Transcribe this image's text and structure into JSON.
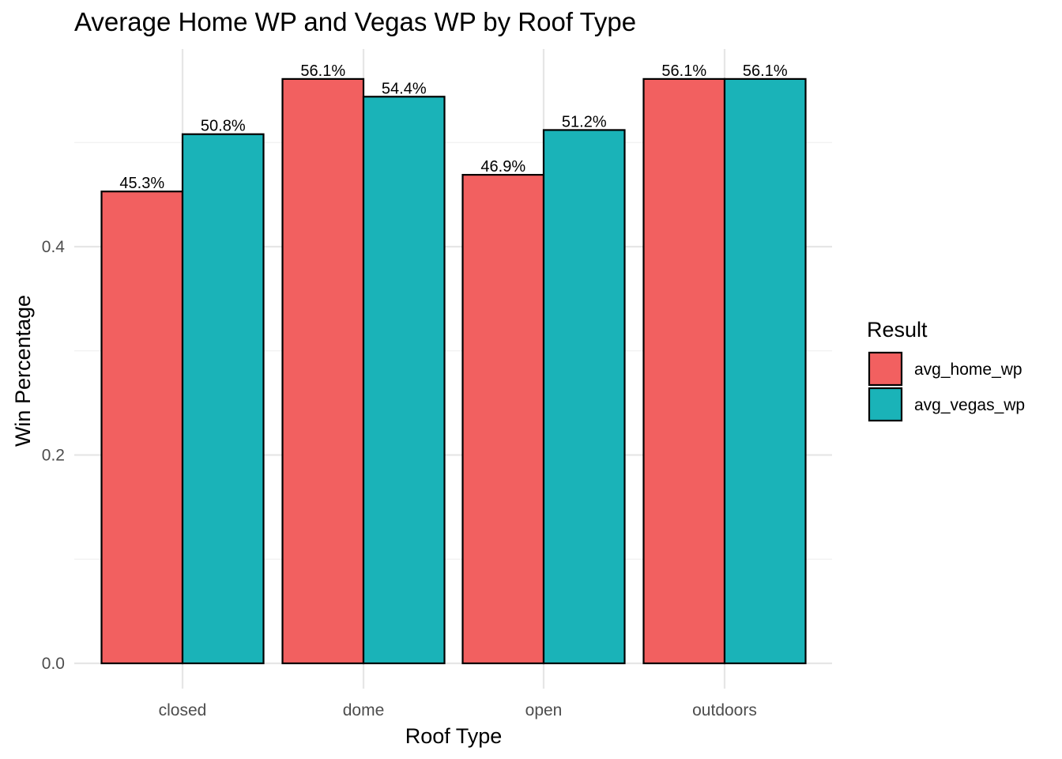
{
  "chart_data": {
    "type": "bar",
    "title": "Average Home WP and Vegas WP by Roof Type",
    "xlabel": "Roof Type",
    "ylabel": "Win Percentage",
    "categories": [
      "closed",
      "dome",
      "open",
      "outdoors"
    ],
    "series": [
      {
        "name": "avg_home_wp",
        "color": "#F26060",
        "values": [
          0.453,
          0.561,
          0.469,
          0.561
        ],
        "labels": [
          "45.3%",
          "56.1%",
          "46.9%",
          "56.1%"
        ]
      },
      {
        "name": "avg_vegas_wp",
        "color": "#1AB3B8",
        "values": [
          0.508,
          0.544,
          0.512,
          0.561
        ],
        "labels": [
          "50.8%",
          "54.4%",
          "51.2%",
          "56.1%"
        ]
      }
    ],
    "yticks": [
      0.0,
      0.2,
      0.4
    ],
    "ytick_labels": [
      "0.0",
      "0.2",
      "0.4"
    ],
    "ylim": [
      0,
      0.6
    ],
    "grid": true,
    "legend": {
      "title": "Result",
      "position": "right"
    }
  }
}
